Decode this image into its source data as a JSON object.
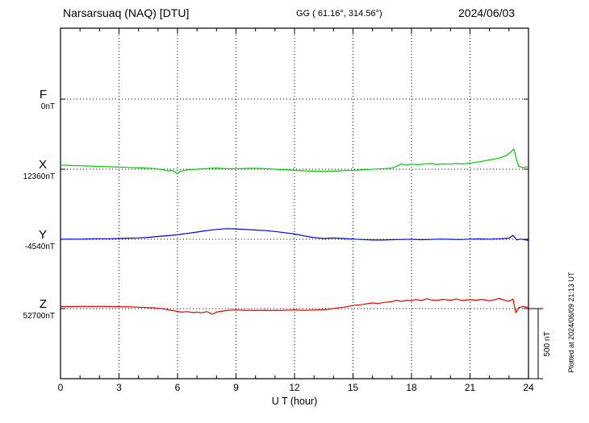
{
  "header": {
    "station": "Narsarsuaq (NAQ)  [DTU]",
    "coords": "GG ( 61.16°, 314.56°)",
    "date": "2024/06/03"
  },
  "annotations": {
    "scale_bar": "500 nT",
    "plotted_at": "Plotted at 2024/06/09 21:13 UT"
  },
  "chart_data": {
    "type": "line",
    "title": "Narsarsuaq (NAQ) [DTU] magnetogram 2024/06/03",
    "xlabel": "U T (hour)",
    "x_range": [
      0,
      24
    ],
    "x_ticks": [
      0,
      3,
      6,
      9,
      12,
      15,
      18,
      21,
      24
    ],
    "grid": "dotted",
    "scale_bar_nT": 500,
    "series": [
      {
        "name": "F",
        "color": "#ffa500",
        "baseline_label": "0nT",
        "baseline_nT": 0,
        "x": [],
        "offsets_nT": []
      },
      {
        "name": "X",
        "color": "#00cc00",
        "baseline_label": "12360nT",
        "baseline_nT": 12360,
        "x": [
          0,
          0.3,
          0.6,
          1,
          1.4,
          1.8,
          2.2,
          2.6,
          3,
          3.4,
          3.8,
          4.2,
          4.6,
          5,
          5.3,
          5.5,
          5.7,
          5.9,
          6,
          6.1,
          6.3,
          6.5,
          6.8,
          7,
          7.3,
          7.6,
          8,
          8.3,
          8.6,
          9,
          9.4,
          9.8,
          10.2,
          10.6,
          11,
          11.4,
          11.8,
          12.2,
          12.6,
          13,
          13.4,
          13.8,
          14.2,
          14.6,
          15,
          15.4,
          15.8,
          16.2,
          16.6,
          17,
          17.3,
          17.5,
          17.7,
          18,
          18.3,
          18.6,
          19,
          19.3,
          19.6,
          20,
          20.3,
          20.6,
          21,
          21.3,
          21.6,
          22,
          22.3,
          22.6,
          22.9,
          23.1,
          23.25,
          23.4,
          23.5,
          23.7,
          24
        ],
        "offsets_nT": [
          30,
          28,
          26,
          25,
          23,
          21,
          19,
          17,
          15,
          13,
          11,
          9,
          7,
          2,
          -5,
          -12,
          -8,
          -20,
          -35,
          -18,
          -10,
          -6,
          -2,
          0,
          3,
          6,
          8,
          6,
          4,
          3,
          5,
          7,
          6,
          3,
          0,
          -3,
          -6,
          -9,
          -12,
          -14,
          -15,
          -14,
          -12,
          -10,
          -8,
          -5,
          -2,
          1,
          4,
          8,
          25,
          38,
          30,
          36,
          32,
          36,
          40,
          34,
          38,
          36,
          40,
          37,
          44,
          50,
          56,
          66,
          74,
          84,
          100,
          125,
          145,
          60,
          20,
          12,
          18
        ]
      },
      {
        "name": "Y",
        "color": "#0000ee",
        "baseline_label": "-4540nT",
        "baseline_nT": -4540,
        "x": [
          0,
          0.5,
          1,
          1.5,
          2,
          2.5,
          3,
          3.5,
          4,
          4.5,
          5,
          5.5,
          6,
          6.5,
          7,
          7.5,
          8,
          8.5,
          9,
          9.5,
          10,
          10.5,
          11,
          11.5,
          12,
          12.5,
          13,
          13.5,
          14,
          14.5,
          15,
          15.5,
          16,
          16.5,
          17,
          17.5,
          18,
          18.5,
          19,
          19.5,
          20,
          20.5,
          21,
          21.5,
          22,
          22.5,
          23,
          23.2,
          23.4,
          23.6,
          24
        ],
        "offsets_nT": [
          0,
          2,
          1,
          3,
          4,
          4,
          6,
          8,
          10,
          14,
          20,
          26,
          32,
          42,
          52,
          62,
          70,
          76,
          74,
          70,
          66,
          62,
          56,
          47,
          38,
          24,
          12,
          6,
          9,
          6,
          2,
          -2,
          -5,
          -5,
          -3,
          -1,
          0,
          -3,
          -1,
          2,
          0,
          -2,
          1,
          3,
          1,
          4,
          8,
          28,
          -4,
          2,
          -8
        ]
      },
      {
        "name": "Z",
        "color": "#ee0000",
        "baseline_label": "52700nT",
        "baseline_nT": 52700,
        "x": [
          0,
          0.4,
          0.8,
          1.2,
          1.6,
          2,
          2.4,
          2.8,
          3.2,
          3.6,
          4,
          4.4,
          4.8,
          5.2,
          5.5,
          5.8,
          6,
          6.2,
          6.5,
          6.8,
          7,
          7.2,
          7.5,
          7.8,
          8,
          8.3,
          8.6,
          9,
          9.5,
          10,
          10.5,
          11,
          11.5,
          12,
          12.5,
          13,
          13.5,
          14,
          14.5,
          15,
          15.5,
          16,
          16.3,
          16.6,
          17,
          17.2,
          17.5,
          17.8,
          18,
          18.2,
          18.5,
          18.8,
          19,
          19.3,
          19.6,
          20,
          20.3,
          20.6,
          21,
          21.3,
          21.6,
          22,
          22.2,
          22.5,
          22.8,
          23,
          23.2,
          23.35,
          23.5,
          23.7,
          24
        ],
        "offsets_nT": [
          15,
          14,
          15,
          16,
          15,
          16,
          15,
          14,
          13,
          12,
          10,
          8,
          5,
          0,
          -8,
          -15,
          -20,
          -25,
          -22,
          -28,
          -25,
          -30,
          -22,
          -40,
          -25,
          -18,
          -12,
          -10,
          -12,
          -14,
          -12,
          -14,
          -12,
          -10,
          -12,
          -10,
          -8,
          0,
          10,
          22,
          30,
          40,
          36,
          44,
          50,
          58,
          52,
          60,
          55,
          65,
          58,
          70,
          62,
          58,
          66,
          60,
          68,
          58,
          64,
          60,
          66,
          55,
          62,
          72,
          58,
          52,
          68,
          -30,
          5,
          15,
          8
        ]
      }
    ]
  }
}
